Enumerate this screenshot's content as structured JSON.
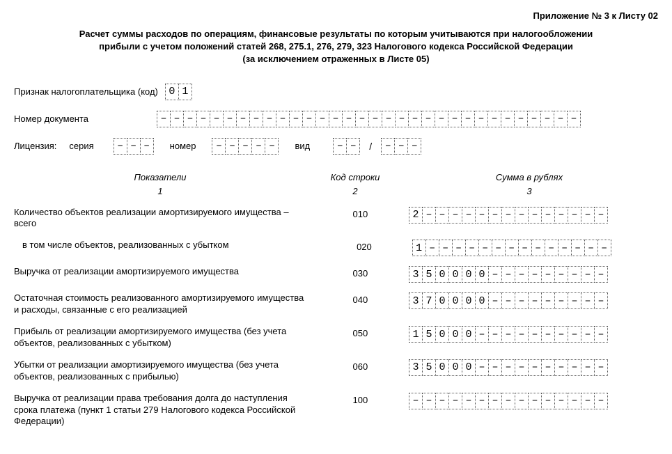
{
  "header": {
    "attachment": "Приложение № 3 к Листу 02"
  },
  "title": {
    "line1": "Расчет суммы расходов по операциям, финансовые результаты по которым учитываются при налогообложении",
    "line2": "прибыли с учетом положений статей 268, 275.1, 276, 279, 323 Налогового кодекса Российской Федерации",
    "line3": "(за исключением отраженных в Листе 05)"
  },
  "fields": {
    "taxpayer_label": "Признак налогоплательщика (код)",
    "taxpayer_value": [
      "0",
      "1"
    ],
    "docnum_label": "Номер документа",
    "docnum_value": [
      "–",
      "–",
      "–",
      "–",
      "–",
      "–",
      "–",
      "–",
      "–",
      "–",
      "–",
      "–",
      "–",
      "–",
      "–",
      "–",
      "–",
      "–",
      "–",
      "–",
      "–",
      "–",
      "–",
      "–",
      "–",
      "–",
      "–",
      "–",
      "–",
      "–",
      "–",
      "–"
    ],
    "license_label": "Лицензия:",
    "series_label": "серия",
    "series_value": [
      "–",
      "–",
      "–"
    ],
    "number_label": "номер",
    "number_value": [
      "–",
      "–",
      "–",
      "–",
      "–"
    ],
    "type_label": "вид",
    "type_value1": [
      "–",
      "–"
    ],
    "type_sep": "/",
    "type_value2": [
      "–",
      "–",
      "–"
    ]
  },
  "columns": {
    "c1": "Показатели",
    "c2": "Код строки",
    "c3": "Сумма в рублях",
    "n1": "1",
    "n2": "2",
    "n3": "3"
  },
  "rows": [
    {
      "label": "Количество объектов реализации амортизируемого имущества – всего",
      "code": "010",
      "value": [
        "2",
        "–",
        "–",
        "–",
        "–",
        "–",
        "–",
        "–",
        "–",
        "–",
        "–",
        "–",
        "–",
        "–",
        "–"
      ],
      "indent": false
    },
    {
      "label": "в том числе объектов, реализованных с убытком",
      "code": "020",
      "value": [
        "1",
        "–",
        "–",
        "–",
        "–",
        "–",
        "–",
        "–",
        "–",
        "–",
        "–",
        "–",
        "–",
        "–",
        "–"
      ],
      "indent": true
    },
    {
      "label": "Выручка от реализации амортизируемого имущества",
      "code": "030",
      "value": [
        "3",
        "5",
        "0",
        "0",
        "0",
        "0",
        "–",
        "–",
        "–",
        "–",
        "–",
        "–",
        "–",
        "–",
        "–"
      ],
      "indent": false
    },
    {
      "label": "Остаточная стоимость реализованного амортизируемого имущества и расходы, связанные с его реализацией",
      "code": "040",
      "value": [
        "3",
        "7",
        "0",
        "0",
        "0",
        "0",
        "–",
        "–",
        "–",
        "–",
        "–",
        "–",
        "–",
        "–",
        "–"
      ],
      "indent": false
    },
    {
      "label": "Прибыль от реализации амортизируемого имущества (без учета объектов, реализованных с убытком)",
      "code": "050",
      "value": [
        "1",
        "5",
        "0",
        "0",
        "0",
        "–",
        "–",
        "–",
        "–",
        "–",
        "–",
        "–",
        "–",
        "–",
        "–"
      ],
      "indent": false
    },
    {
      "label": "Убытки от реализации амортизируемого имущества (без учета объектов, реализованных с прибылью)",
      "code": "060",
      "value": [
        "3",
        "5",
        "0",
        "0",
        "0",
        "–",
        "–",
        "–",
        "–",
        "–",
        "–",
        "–",
        "–",
        "–",
        "–"
      ],
      "indent": false
    },
    {
      "label": "Выручка от реализации права требования долга до наступления срока платежа (пункт 1 статьи 279 Налогового кодекса Российской Федерации)",
      "code": "100",
      "value": [
        "–",
        "–",
        "–",
        "–",
        "–",
        "–",
        "–",
        "–",
        "–",
        "–",
        "–",
        "–",
        "–",
        "–",
        "–"
      ],
      "indent": false
    }
  ]
}
